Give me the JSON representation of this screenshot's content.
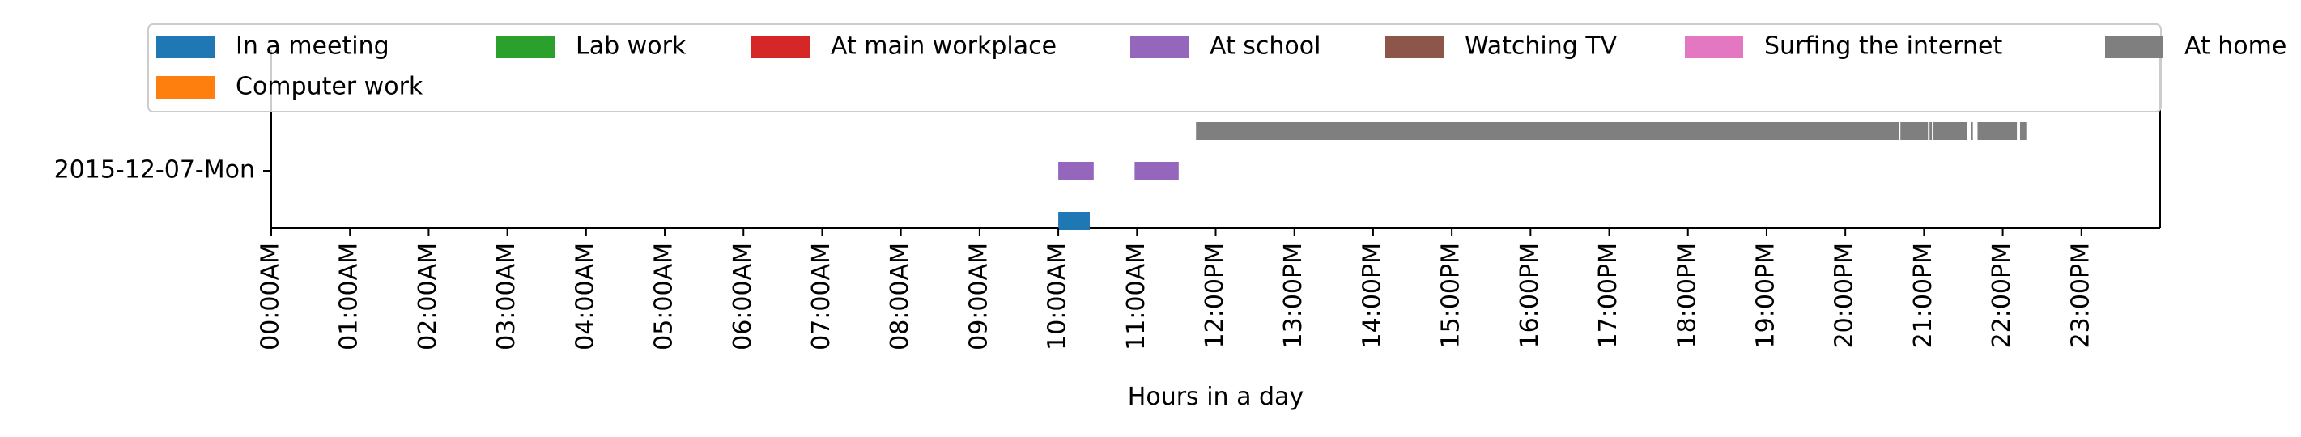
{
  "chart_data": {
    "type": "timeline",
    "xlabel": "Hours in a day",
    "ylabel": "",
    "xlim": [
      0,
      24
    ],
    "y_category": "2015-12-07-Mon",
    "ticks": [
      "00:00AM",
      "01:00AM",
      "02:00AM",
      "03:00AM",
      "04:00AM",
      "05:00AM",
      "06:00AM",
      "07:00AM",
      "08:00AM",
      "09:00AM",
      "10:00AM",
      "11:00AM",
      "12:00PM",
      "13:00PM",
      "14:00PM",
      "15:00PM",
      "16:00PM",
      "17:00PM",
      "18:00PM",
      "19:00PM",
      "20:00PM",
      "21:00PM",
      "22:00PM",
      "23:00PM"
    ],
    "legend_position": "top",
    "legend": [
      {
        "name": "In a meeting",
        "color": "#1f77b4"
      },
      {
        "name": "Lab work",
        "color": "#2ca02c"
      },
      {
        "name": "At main workplace",
        "color": "#d62728"
      },
      {
        "name": "At school",
        "color": "#9467bd"
      },
      {
        "name": "Watching TV",
        "color": "#8c564b"
      },
      {
        "name": "Surfing the internet",
        "color": "#e377c2"
      },
      {
        "name": "At home",
        "color": "#7f7f7f"
      },
      {
        "name": "Computer work",
        "color": "#ff7f0e"
      }
    ],
    "series": [
      {
        "name": "In a meeting",
        "lane": 0,
        "color": "#1f77b4",
        "intervals": [
          [
            10.0,
            10.4
          ]
        ]
      },
      {
        "name": "At school",
        "lane": 1,
        "color": "#9467bd",
        "intervals": [
          [
            10.0,
            10.45
          ],
          [
            10.97,
            11.53
          ]
        ]
      },
      {
        "name": "At home",
        "lane": 2,
        "color": "#7f7f7f",
        "intervals": [
          [
            11.75,
            20.68
          ],
          [
            20.7,
            21.05
          ],
          [
            21.1,
            21.07
          ],
          [
            21.12,
            21.55
          ],
          [
            21.6,
            21.62
          ],
          [
            21.68,
            22.18
          ],
          [
            22.22,
            22.3
          ]
        ]
      }
    ]
  }
}
